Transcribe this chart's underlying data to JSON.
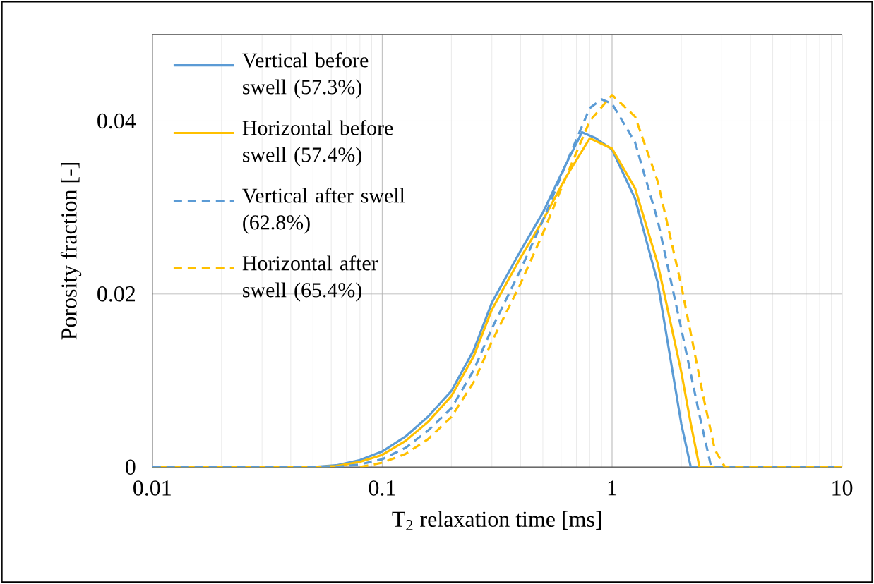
{
  "chart_data": {
    "type": "line",
    "xlabel": "T$_{2}$ relaxation time [ms]",
    "ylabel": "Porosity fraction [-]",
    "log": "x",
    "xlim": [
      0.01,
      10
    ],
    "ylim": [
      0,
      0.05
    ],
    "xticks": [
      0.01,
      0.1,
      1,
      10
    ],
    "yticks": [
      0,
      0.02,
      0.04
    ],
    "grid": true,
    "legend": "top left",
    "marker": "none",
    "series": [
      {
        "name": "Vertical before swell (57.3%)",
        "color": "#5b9bd5",
        "line_style": "solid",
        "x": [
          0.01,
          0.05,
          0.063,
          0.08,
          0.1,
          0.126,
          0.158,
          0.2,
          0.25,
          0.3,
          0.4,
          0.5,
          0.63,
          0.74,
          0.85,
          1,
          1.26,
          1.58,
          2,
          2.2,
          3,
          10
        ],
        "values": [
          0,
          0,
          0.0002,
          0.0008,
          0.0018,
          0.0035,
          0.0058,
          0.0088,
          0.0135,
          0.019,
          0.025,
          0.0294,
          0.035,
          0.0387,
          0.038,
          0.0367,
          0.031,
          0.0213,
          0.005,
          0,
          0,
          0
        ]
      },
      {
        "name": "Horizontal before swell (57.4%)",
        "color": "#ffc000",
        "line_style": "solid",
        "x": [
          0.01,
          0.05,
          0.063,
          0.08,
          0.1,
          0.126,
          0.158,
          0.2,
          0.25,
          0.3,
          0.4,
          0.5,
          0.63,
          0.8,
          1,
          1.26,
          1.58,
          2,
          2.2,
          2.4,
          3,
          10
        ],
        "values": [
          0,
          0,
          0.0001,
          0.0006,
          0.0014,
          0.003,
          0.0052,
          0.0082,
          0.0128,
          0.0182,
          0.0242,
          0.0285,
          0.0335,
          0.038,
          0.0368,
          0.0322,
          0.0235,
          0.011,
          0.005,
          0,
          0,
          0
        ]
      },
      {
        "name": "Vertical after swell (62.8%)",
        "color": "#5b9bd5",
        "line_style": "dashed",
        "x": [
          0.01,
          0.063,
          0.08,
          0.1,
          0.126,
          0.158,
          0.2,
          0.25,
          0.3,
          0.4,
          0.5,
          0.63,
          0.8,
          0.9,
          1,
          1.26,
          1.58,
          2,
          2.4,
          2.7,
          10
        ],
        "values": [
          0,
          0,
          0.0003,
          0.0009,
          0.0022,
          0.0042,
          0.0068,
          0.0112,
          0.016,
          0.0228,
          0.0285,
          0.035,
          0.0415,
          0.0425,
          0.042,
          0.0375,
          0.0285,
          0.016,
          0.006,
          0,
          0
        ]
      },
      {
        "name": "Horizontal after swell (65.4%)",
        "color": "#ffc000",
        "line_style": "dashed",
        "x": [
          0.08,
          0.1,
          0.126,
          0.158,
          0.2,
          0.25,
          0.3,
          0.4,
          0.5,
          0.63,
          0.8,
          1,
          1.26,
          1.58,
          2,
          2.5,
          2.8,
          3.1,
          10
        ],
        "values": [
          0,
          0.0005,
          0.0015,
          0.0032,
          0.0058,
          0.0098,
          0.0145,
          0.0212,
          0.027,
          0.0335,
          0.04,
          0.043,
          0.0405,
          0.033,
          0.021,
          0.008,
          0.002,
          0,
          0
        ]
      }
    ]
  }
}
